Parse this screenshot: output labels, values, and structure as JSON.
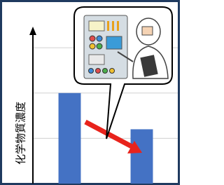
{
  "chart_data": {
    "type": "bar",
    "y_label": "化学物質濃度",
    "categories": [
      null,
      null
    ],
    "values": [
      2,
      1.2
    ],
    "color": "#4472c4",
    "ylim": [
      0,
      3.9
    ],
    "yticks": [
      1,
      2,
      3
    ],
    "grid": true
  }
}
